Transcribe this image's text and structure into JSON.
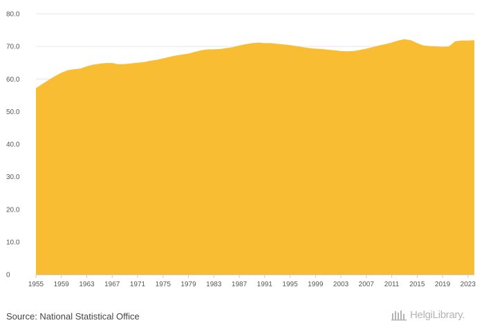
{
  "source": "Source: National Statistical Office",
  "brand": "HelgiLibrary.",
  "colors": {
    "area": "#f9bd33",
    "grid": "#e6e6e6",
    "axis": "#cccccc",
    "text": "#555555"
  },
  "chart_data": {
    "type": "area",
    "title": "",
    "xlabel": "",
    "ylabel": "",
    "xlim": [
      1955,
      2024
    ],
    "ylim": [
      0,
      80
    ],
    "grid": true,
    "legend": "none",
    "x_ticks": [
      "1955",
      "1959",
      "1963",
      "1967",
      "1971",
      "1975",
      "1979",
      "1983",
      "1987",
      "1991",
      "1995",
      "1999",
      "2003",
      "2007",
      "2011",
      "2015",
      "2019",
      "2023"
    ],
    "y_ticks": [
      "0",
      "10.0",
      "20.0",
      "30.0",
      "40.0",
      "50.0",
      "60.0",
      "70.0",
      "80.0"
    ],
    "x": [
      1955,
      1956,
      1957,
      1958,
      1959,
      1960,
      1961,
      1962,
      1963,
      1964,
      1965,
      1966,
      1967,
      1968,
      1969,
      1970,
      1971,
      1972,
      1973,
      1974,
      1975,
      1976,
      1977,
      1978,
      1979,
      1980,
      1981,
      1982,
      1983,
      1984,
      1985,
      1986,
      1987,
      1988,
      1989,
      1990,
      1991,
      1992,
      1993,
      1994,
      1995,
      1996,
      1997,
      1998,
      1999,
      2000,
      2001,
      2002,
      2003,
      2004,
      2005,
      2006,
      2007,
      2008,
      2009,
      2010,
      2011,
      2012,
      2013,
      2014,
      2015,
      2016,
      2017,
      2018,
      2019,
      2020,
      2021,
      2022,
      2023,
      2024
    ],
    "values": [
      57.2,
      58.5,
      59.7,
      60.9,
      61.9,
      62.7,
      63.0,
      63.2,
      63.9,
      64.4,
      64.7,
      64.9,
      64.9,
      64.5,
      64.6,
      64.8,
      65.0,
      65.2,
      65.6,
      65.9,
      66.3,
      66.8,
      67.2,
      67.5,
      67.8,
      68.3,
      68.8,
      69.1,
      69.1,
      69.2,
      69.5,
      69.8,
      70.3,
      70.7,
      71.0,
      71.2,
      71.0,
      71.0,
      70.8,
      70.6,
      70.4,
      70.1,
      69.8,
      69.5,
      69.3,
      69.2,
      69.0,
      68.8,
      68.6,
      68.5,
      68.6,
      68.9,
      69.3,
      69.8,
      70.3,
      70.7,
      71.2,
      71.8,
      72.2,
      71.9,
      71.0,
      70.3,
      70.1,
      70.0,
      69.9,
      70.0,
      71.6,
      71.8,
      71.8,
      71.9
    ]
  }
}
